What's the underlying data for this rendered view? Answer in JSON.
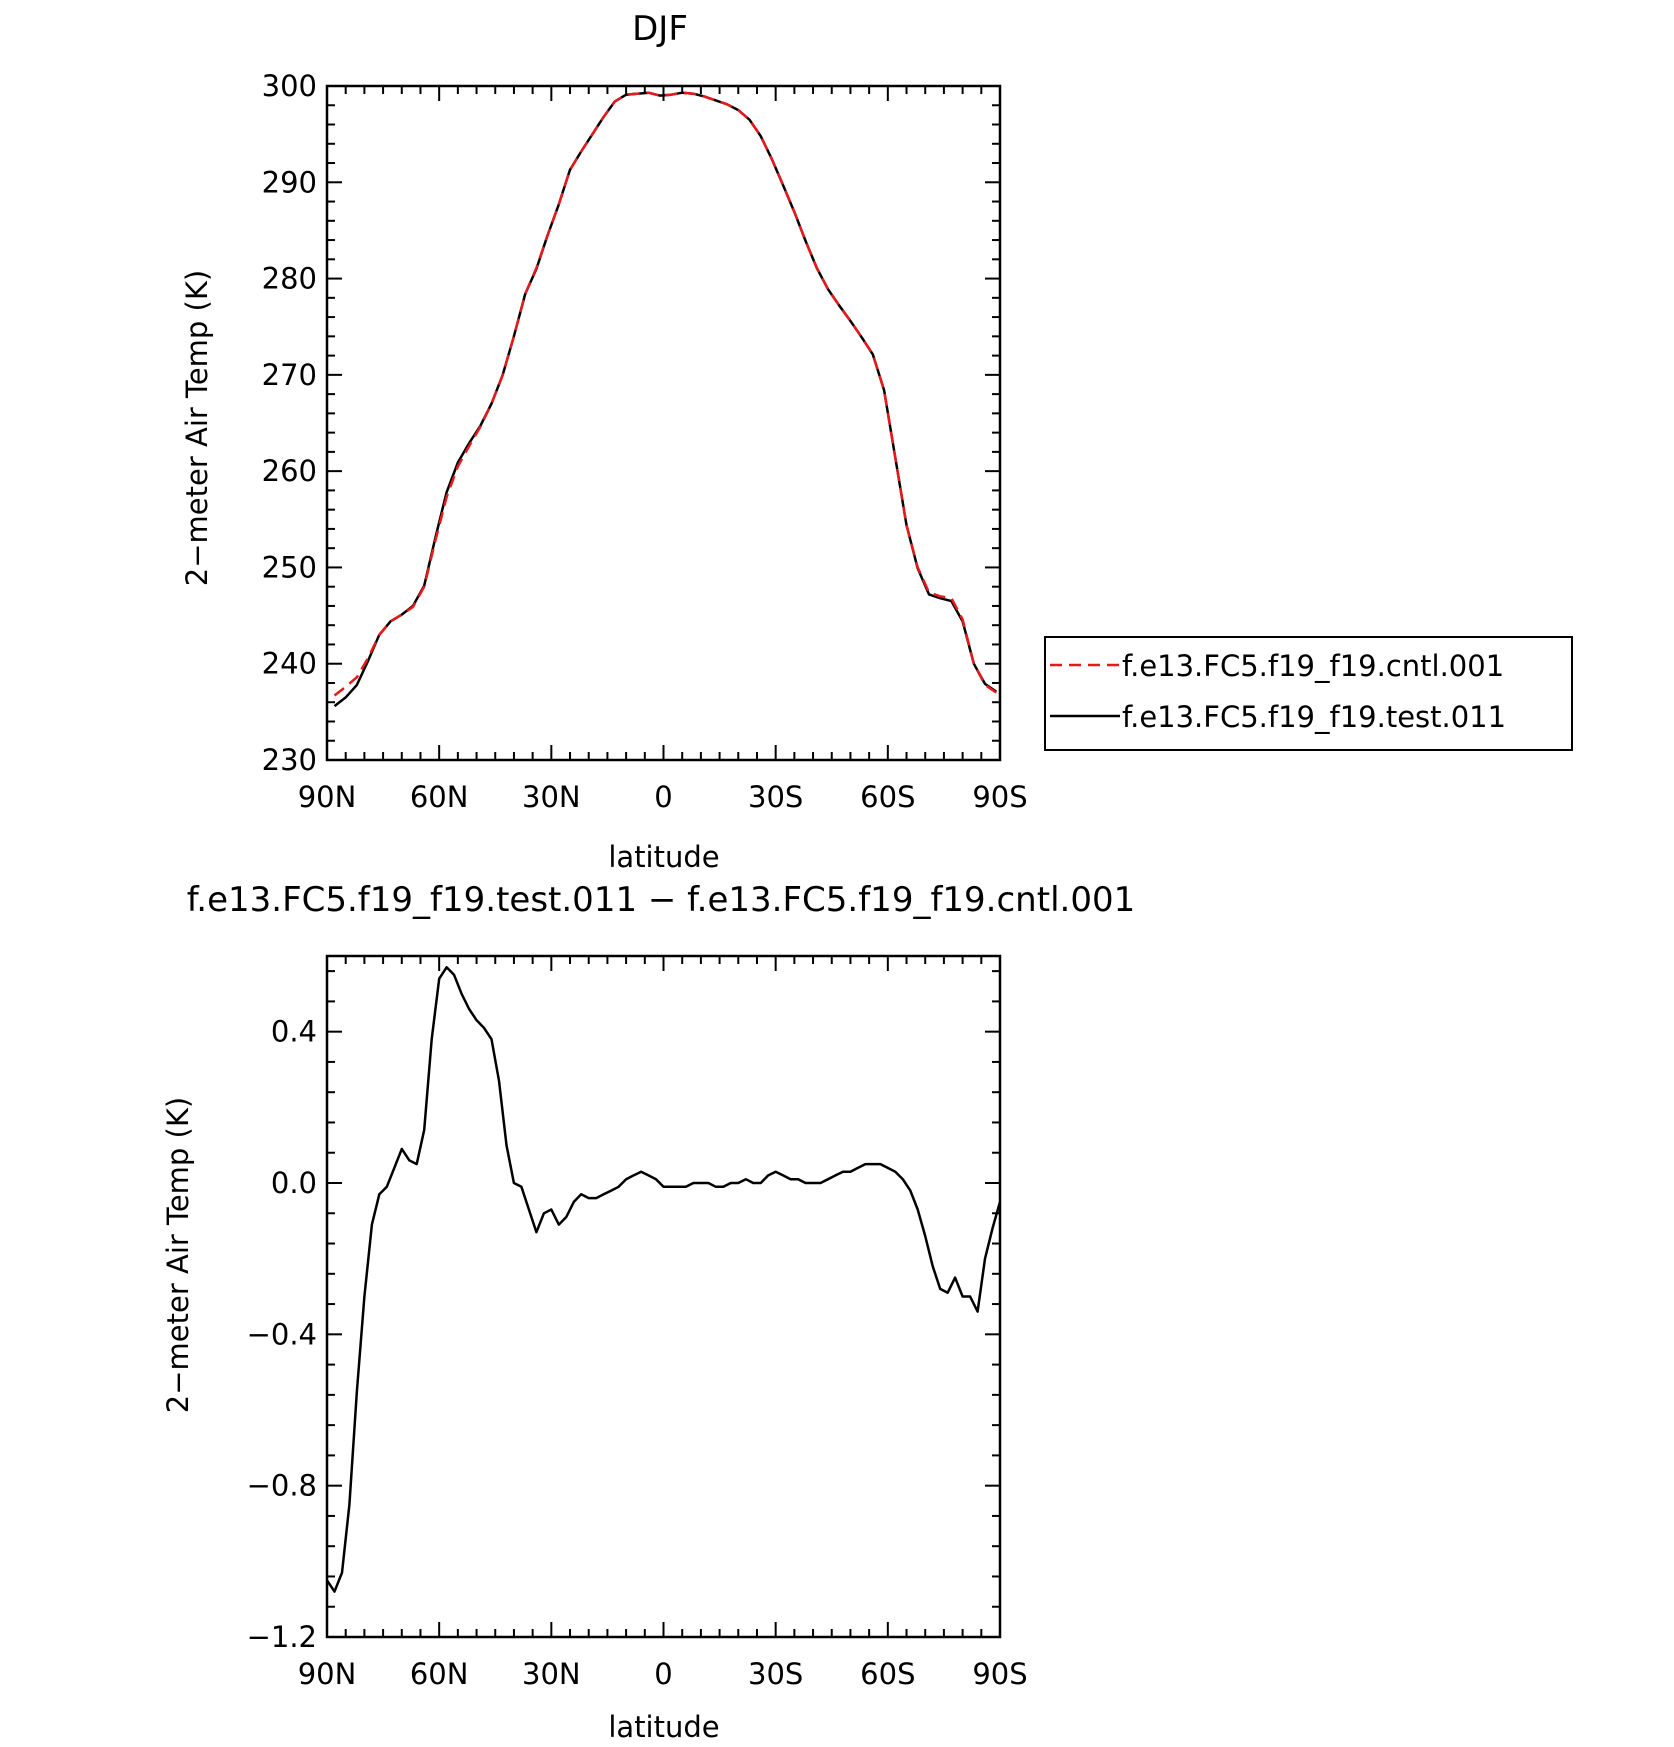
{
  "chart_data": [
    {
      "type": "line",
      "title": "DJF",
      "xlabel": "latitude",
      "ylabel": "2−meter Air Temp (K)",
      "xlim": [
        90,
        -90
      ],
      "ylim": [
        230,
        300
      ],
      "x_ticks": [
        90,
        60,
        30,
        0,
        -30,
        -60,
        -90
      ],
      "x_tick_labels": [
        "90N",
        "60N",
        "30N",
        "0",
        "30S",
        "60S",
        "90S"
      ],
      "y_ticks": [
        230,
        240,
        250,
        260,
        270,
        280,
        290,
        300
      ],
      "y_tick_labels": [
        "230",
        "240",
        "250",
        "260",
        "270",
        "280",
        "290",
        "300"
      ],
      "grid": false,
      "legend": "right",
      "x": [
        88,
        85,
        82,
        79,
        76,
        73,
        70,
        67,
        64,
        61,
        58,
        55,
        52,
        49,
        46,
        43,
        40,
        37,
        34,
        31,
        28,
        25,
        22,
        19,
        16,
        13,
        10,
        7,
        4,
        1,
        -2,
        -5,
        -8,
        -11,
        -14,
        -17,
        -20,
        -23,
        -26,
        -29,
        -32,
        -35,
        -38,
        -41,
        -44,
        -47,
        -50,
        -53,
        -56,
        -59,
        -62,
        -65,
        -68,
        -71,
        -74,
        -77,
        -80,
        -83,
        -86,
        -89
      ],
      "series": [
        {
          "name": "f.e13.FC5.f19_f19.cntl.001",
          "color": "#e8191b",
          "dash": true,
          "values": [
            236.7,
            237.6,
            238.6,
            240.6,
            243.0,
            244.4,
            245.1,
            245.9,
            248.0,
            252.8,
            257.3,
            260.5,
            262.6,
            264.6,
            267.0,
            270.0,
            274.0,
            278.4,
            281.1,
            284.5,
            287.7,
            291.3,
            293.2,
            295.0,
            296.8,
            298.4,
            299.1,
            299.2,
            299.3,
            299.0,
            299.1,
            299.3,
            299.2,
            298.9,
            298.5,
            298.1,
            297.5,
            296.5,
            294.8,
            292.4,
            289.7,
            286.9,
            283.9,
            281.1,
            278.9,
            277.2,
            275.6,
            273.9,
            272.1,
            268.4,
            261.4,
            254.4,
            250.0,
            247.4,
            247.0,
            246.8,
            244.6,
            240.0,
            237.8,
            237.0
          ],
          "line_color": "#000000"
        },
        {
          "name": "f.e13.FC5.f19_f19.test.011",
          "color": "#000000",
          "dash": false,
          "values": [
            235.6,
            236.5,
            237.8,
            240.3,
            243.0,
            244.4,
            245.1,
            246.0,
            248.1,
            253.1,
            257.8,
            260.9,
            262.9,
            264.7,
            267.0,
            270.0,
            274.0,
            278.4,
            281.0,
            284.5,
            287.7,
            291.3,
            293.2,
            295.0,
            296.8,
            298.4,
            299.1,
            299.2,
            299.3,
            299.0,
            299.1,
            299.3,
            299.2,
            298.9,
            298.5,
            298.1,
            297.5,
            296.5,
            294.8,
            292.4,
            289.7,
            286.9,
            283.9,
            281.1,
            278.9,
            277.2,
            275.6,
            273.9,
            272.1,
            268.4,
            261.4,
            254.4,
            249.9,
            247.2,
            246.8,
            246.5,
            244.4,
            240.0,
            237.9,
            237.1
          ]
        }
      ]
    },
    {
      "type": "line",
      "title": "f.e13.FC5.f19_f19.test.011 − f.e13.FC5.f19_f19.cntl.001",
      "xlabel": "latitude",
      "ylabel": "2−meter Air Temp (K)",
      "xlim": [
        90,
        -90
      ],
      "ylim": [
        -1.2,
        0.6
      ],
      "x_ticks": [
        90,
        60,
        30,
        0,
        -30,
        -60,
        -90
      ],
      "x_tick_labels": [
        "90N",
        "60N",
        "30N",
        "0",
        "30S",
        "60S",
        "90S"
      ],
      "y_ticks": [
        -1.2,
        -0.8,
        -0.4,
        0.0,
        0.4
      ],
      "y_tick_labels": [
        "−1.2",
        "−0.8",
        "−0.4",
        "0.0",
        "0.4"
      ],
      "grid": false,
      "series": [
        {
          "color": "#000000",
          "x": [
            90,
            88,
            86,
            84,
            82,
            80,
            78,
            76,
            74,
            72,
            70,
            68,
            66,
            64,
            62,
            60,
            58,
            56,
            54,
            52,
            50,
            48,
            46,
            44,
            42,
            40,
            38,
            36,
            34,
            32,
            30,
            28,
            26,
            24,
            22,
            20,
            18,
            16,
            14,
            12,
            10,
            8,
            6,
            4,
            2,
            0,
            -2,
            -4,
            -6,
            -8,
            -10,
            -12,
            -14,
            -16,
            -18,
            -20,
            -22,
            -24,
            -26,
            -28,
            -30,
            -32,
            -34,
            -36,
            -38,
            -40,
            -42,
            -44,
            -46,
            -48,
            -50,
            -52,
            -54,
            -56,
            -58,
            -60,
            -62,
            -64,
            -66,
            -68,
            -70,
            -72,
            -74,
            -76,
            -78,
            -80,
            -82,
            -84,
            -86,
            -88,
            -90
          ],
          "values": [
            -1.05,
            -1.08,
            -1.03,
            -0.85,
            -0.55,
            -0.3,
            -0.11,
            -0.03,
            -0.01,
            0.04,
            0.09,
            0.06,
            0.05,
            0.14,
            0.38,
            0.54,
            0.57,
            0.55,
            0.5,
            0.46,
            0.43,
            0.41,
            0.38,
            0.27,
            0.1,
            0.0,
            -0.01,
            -0.07,
            -0.13,
            -0.08,
            -0.07,
            -0.11,
            -0.09,
            -0.05,
            -0.03,
            -0.04,
            -0.04,
            -0.03,
            -0.02,
            -0.01,
            0.01,
            0.02,
            0.03,
            0.02,
            0.01,
            -0.01,
            -0.01,
            -0.01,
            -0.01,
            0.0,
            0.0,
            0.0,
            -0.01,
            -0.01,
            0.0,
            0.0,
            0.01,
            0.0,
            0.0,
            0.02,
            0.03,
            0.02,
            0.01,
            0.01,
            0.0,
            0.0,
            0.0,
            0.01,
            0.02,
            0.03,
            0.03,
            0.04,
            0.05,
            0.05,
            0.05,
            0.04,
            0.03,
            0.01,
            -0.02,
            -0.07,
            -0.14,
            -0.22,
            -0.28,
            -0.29,
            -0.25,
            -0.3,
            -0.3,
            -0.34,
            -0.2,
            -0.12,
            -0.05
          ]
        }
      ]
    }
  ]
}
